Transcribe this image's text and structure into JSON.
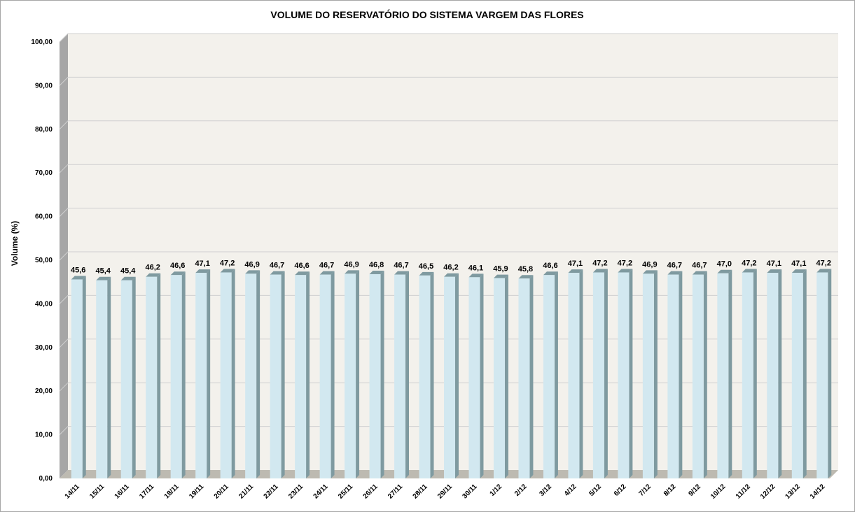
{
  "chart_data": {
    "type": "bar",
    "title": "VOLUME DO RESERVATÓRIO DO SISTEMA VARGEM DAS FLORES",
    "xlabel": "",
    "ylabel": "Volume (%)",
    "ylim": [
      0,
      100
    ],
    "y_ticks": [
      "0,00",
      "10,00",
      "20,00",
      "30,00",
      "40,00",
      "50,00",
      "60,00",
      "70,00",
      "80,00",
      "90,00",
      "100,00"
    ],
    "categories": [
      "14/11",
      "15/11",
      "16/11",
      "17/11",
      "18/11",
      "19/11",
      "20/11",
      "21/11",
      "22/11",
      "23/11",
      "24/11",
      "25/11",
      "26/11",
      "27/11",
      "28/11",
      "29/11",
      "30/11",
      "1/12",
      "2/12",
      "3/12",
      "4/12",
      "5/12",
      "6/12",
      "7/12",
      "8/12",
      "9/12",
      "10/12",
      "11/12",
      "12/12",
      "13/12",
      "14/12"
    ],
    "values": [
      45.6,
      45.4,
      45.4,
      46.2,
      46.6,
      47.1,
      47.2,
      46.9,
      46.7,
      46.6,
      46.7,
      46.9,
      46.8,
      46.7,
      46.5,
      46.2,
      46.1,
      45.9,
      45.8,
      46.6,
      47.1,
      47.2,
      47.2,
      46.9,
      46.7,
      46.7,
      47.0,
      47.2,
      47.1,
      47.1,
      47.2
    ],
    "data_labels": [
      "45,6",
      "45,4",
      "45,4",
      "46,2",
      "46,6",
      "47,1",
      "47,2",
      "46,9",
      "46,7",
      "46,6",
      "46,7",
      "46,9",
      "46,8",
      "46,7",
      "46,5",
      "46,2",
      "46,1",
      "45,9",
      "45,8",
      "46,6",
      "47,1",
      "47,2",
      "47,2",
      "46,9",
      "46,7",
      "46,7",
      "47,0",
      "47,2",
      "47,1",
      "47,1",
      "47,2"
    ],
    "grid": true,
    "legend": "none",
    "colors": {
      "bar_front": "#d2e8f0",
      "bar_side": "#7f9aa0",
      "bar_top": "#e6f2f6",
      "plot_background": "#f3f1ec",
      "side_wall": "#a6a6a6",
      "floor": "#bdbab1",
      "gridline": "#d0d0d0"
    }
  }
}
